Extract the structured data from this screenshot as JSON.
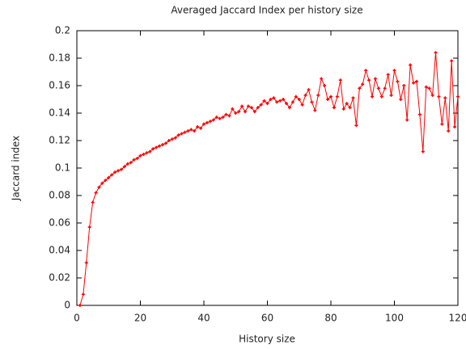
{
  "chart_data": {
    "type": "line",
    "title": "Averaged Jaccard Index per history size",
    "xlabel": "History size",
    "ylabel": "Jaccard index",
    "x": [
      1,
      2,
      3,
      4,
      5,
      6,
      7,
      8,
      9,
      10,
      11,
      12,
      13,
      14,
      15,
      16,
      17,
      18,
      19,
      20,
      21,
      22,
      23,
      24,
      25,
      26,
      27,
      28,
      29,
      30,
      31,
      32,
      33,
      34,
      35,
      36,
      37,
      38,
      39,
      40,
      41,
      42,
      43,
      44,
      45,
      46,
      47,
      48,
      49,
      50,
      51,
      52,
      53,
      54,
      55,
      56,
      57,
      58,
      59,
      60,
      61,
      62,
      63,
      64,
      65,
      66,
      67,
      68,
      69,
      70,
      71,
      72,
      73,
      74,
      75,
      76,
      77,
      78,
      79,
      80,
      81,
      82,
      83,
      84,
      85,
      86,
      87,
      88,
      89,
      90,
      91,
      92,
      93,
      94,
      95,
      96,
      97,
      98,
      99,
      100,
      101,
      102,
      103,
      104,
      105,
      106,
      107,
      108,
      109,
      110,
      111,
      112,
      113,
      114,
      115,
      116,
      117,
      118,
      119,
      120
    ],
    "series": [
      {
        "name": "Jaccard index",
        "color": "#ff0000",
        "values": [
          0.0,
          0.008,
          0.031,
          0.057,
          0.075,
          0.082,
          0.086,
          0.089,
          0.091,
          0.093,
          0.095,
          0.097,
          0.098,
          0.099,
          0.101,
          0.103,
          0.104,
          0.106,
          0.107,
          0.109,
          0.11,
          0.111,
          0.112,
          0.114,
          0.115,
          0.116,
          0.117,
          0.118,
          0.12,
          0.121,
          0.122,
          0.124,
          0.125,
          0.126,
          0.127,
          0.128,
          0.127,
          0.13,
          0.129,
          0.132,
          0.133,
          0.134,
          0.135,
          0.137,
          0.136,
          0.137,
          0.139,
          0.138,
          0.143,
          0.14,
          0.141,
          0.145,
          0.141,
          0.145,
          0.144,
          0.141,
          0.144,
          0.146,
          0.149,
          0.147,
          0.15,
          0.151,
          0.148,
          0.149,
          0.15,
          0.147,
          0.144,
          0.148,
          0.152,
          0.15,
          0.146,
          0.153,
          0.157,
          0.148,
          0.142,
          0.153,
          0.165,
          0.16,
          0.15,
          0.152,
          0.144,
          0.152,
          0.164,
          0.143,
          0.147,
          0.144,
          0.151,
          0.131,
          0.158,
          0.161,
          0.171,
          0.164,
          0.152,
          0.165,
          0.158,
          0.152,
          0.158,
          0.168,
          0.153,
          0.171,
          0.163,
          0.15,
          0.16,
          0.135,
          0.175,
          0.162,
          0.163,
          0.139,
          0.112,
          0.159,
          0.158,
          0.153,
          0.184,
          0.152,
          0.132,
          0.151,
          0.127,
          0.178,
          0.13,
          0.152
        ]
      }
    ],
    "xlim": [
      0,
      120
    ],
    "xticks": [
      0,
      20,
      40,
      60,
      80,
      100,
      120
    ],
    "ylim": [
      0,
      0.2
    ],
    "yticks": [
      0,
      0.02,
      0.04,
      0.06,
      0.08,
      0.1,
      0.12,
      0.14,
      0.16,
      0.18,
      0.2
    ],
    "grid": false
  }
}
